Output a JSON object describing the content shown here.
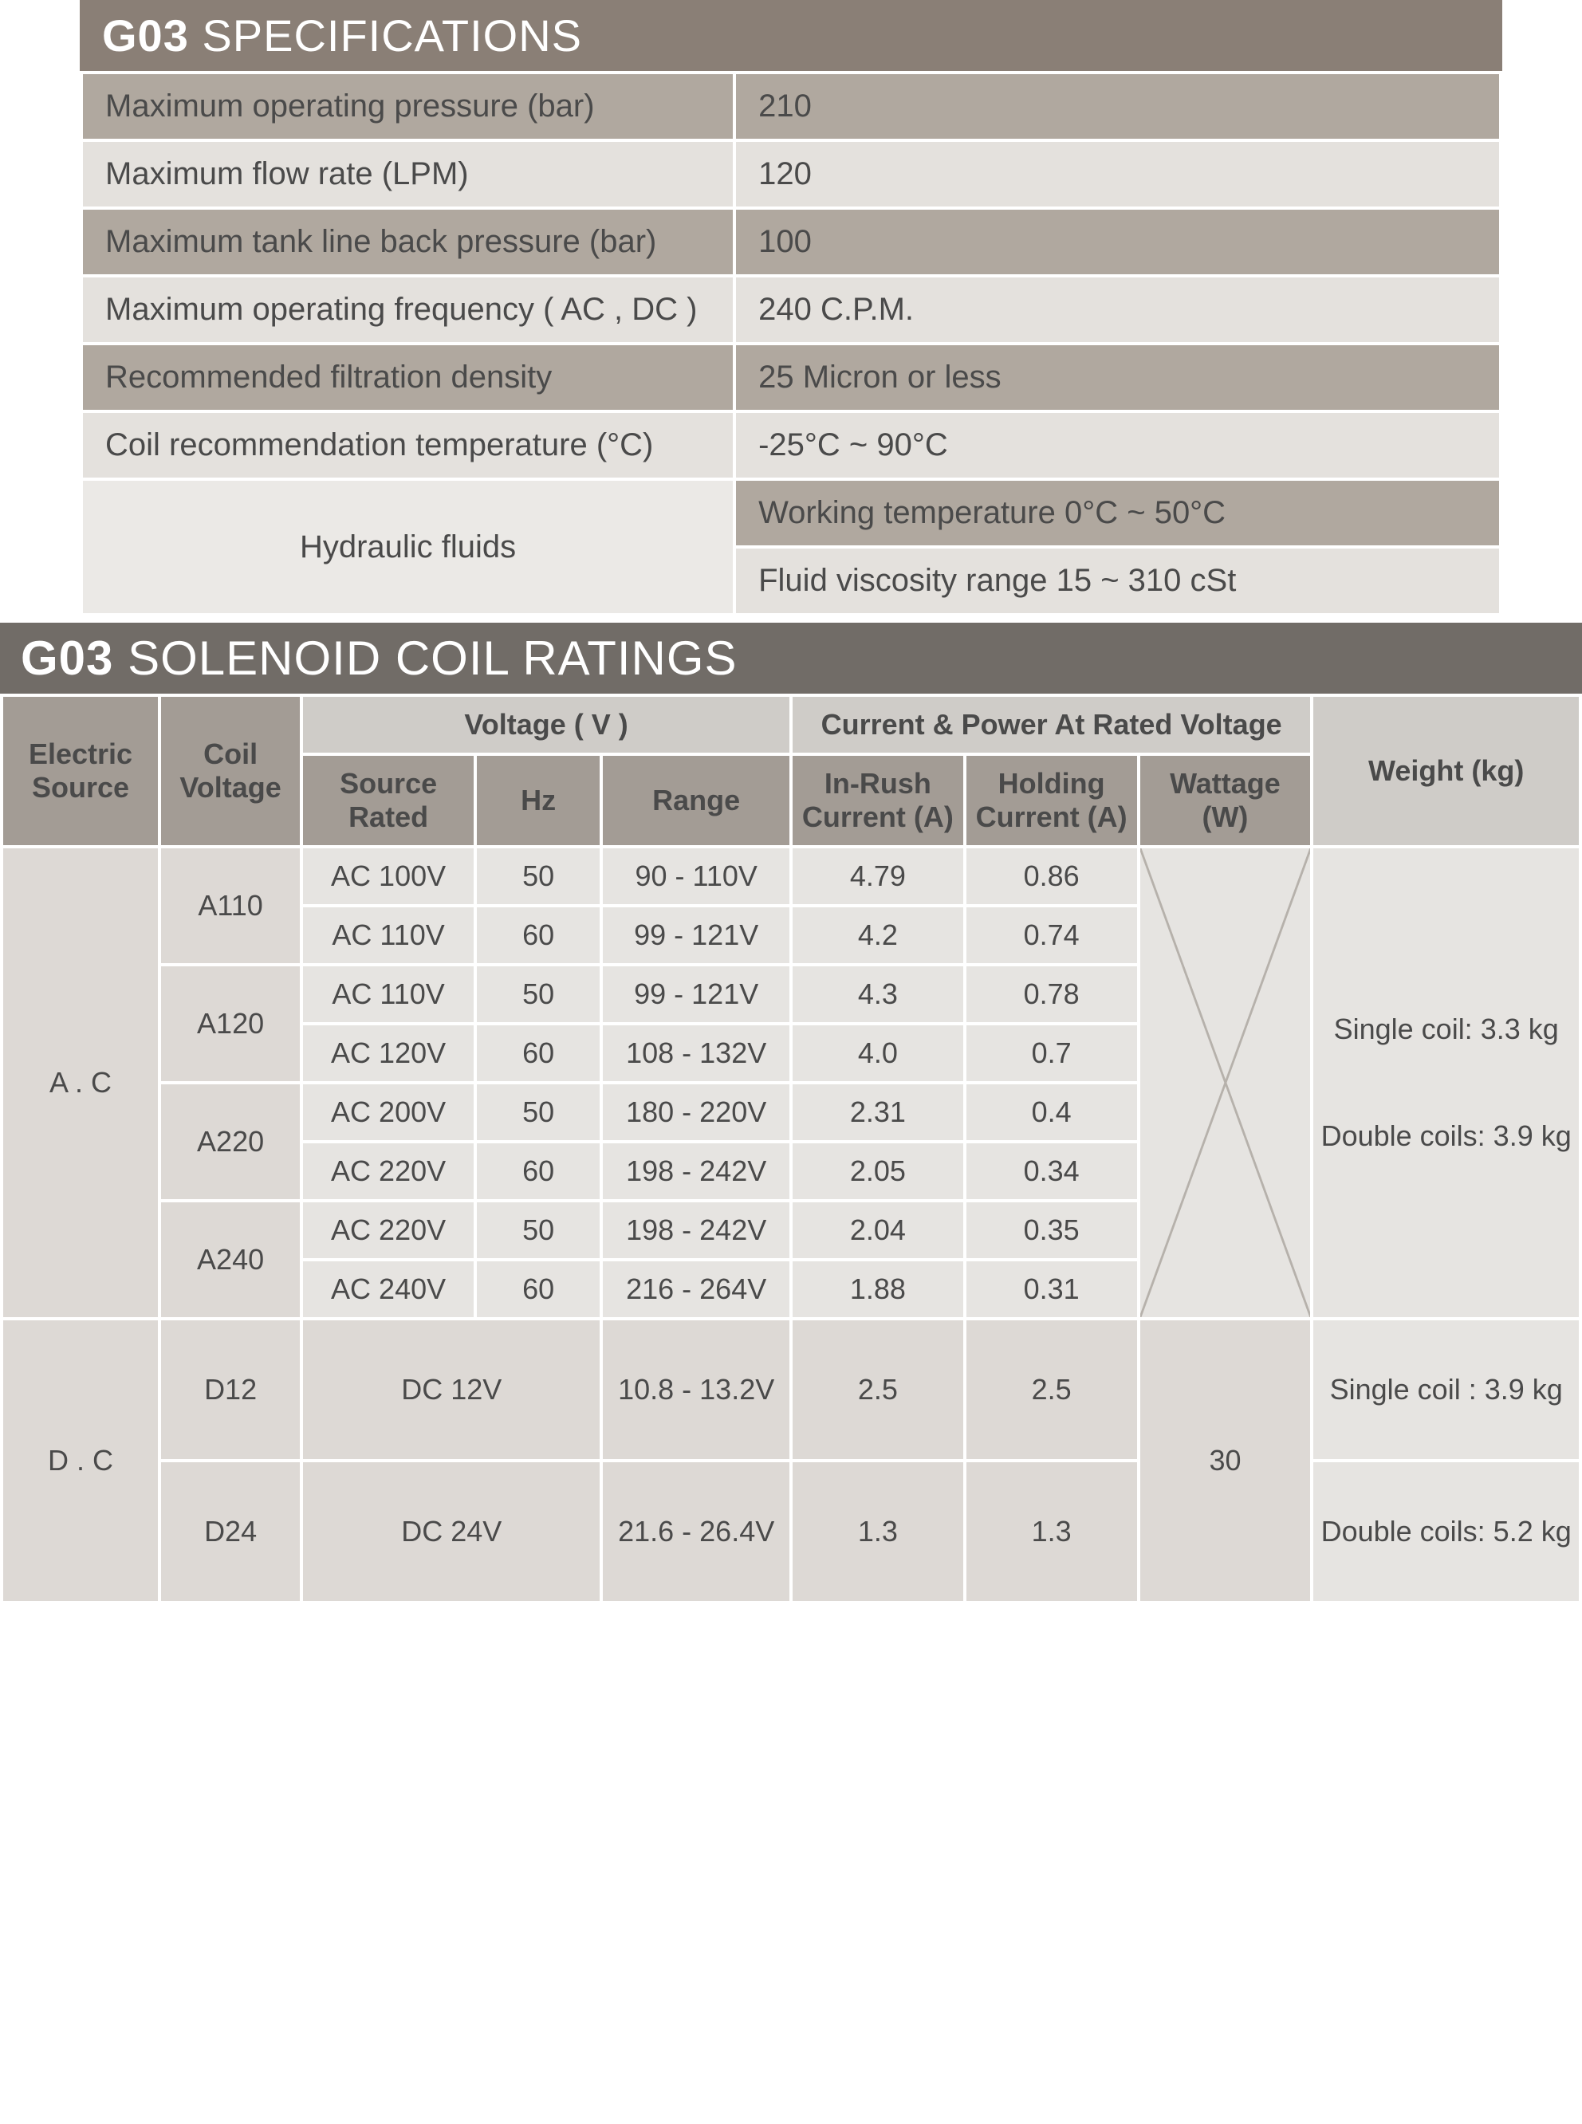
{
  "spec": {
    "title_bold": "G03",
    "title_rest": "SPECIFICATIONS",
    "rows": [
      {
        "label": "Maximum operating pressure (bar)",
        "value": "210"
      },
      {
        "label": "Maximum flow rate (LPM)",
        "value": "120"
      },
      {
        "label": "Maximum tank line back pressure  (bar)",
        "value": "100"
      },
      {
        "label": "Maximum operating frequency  ( AC , DC )",
        "value": "240 C.P.M."
      },
      {
        "label": "Recommended filtration density",
        "value": "25 Micron or less"
      },
      {
        "label": "Coil recommendation temperature (°C)",
        "value": "-25°C ~ 90°C"
      }
    ],
    "hydraulic_label": "Hydraulic fluids",
    "hydraulic_1": "Working temperature  0°C ~ 50°C",
    "hydraulic_2": "Fluid viscosity range 15 ~ 310 cSt",
    "colors": {
      "title_bg": "#8a7f76",
      "row_dark": "#b0a89f",
      "row_light": "#e4e1dd"
    }
  },
  "ratings": {
    "title_bold": "G03",
    "title_rest": "SOLENOID COIL RATINGS",
    "header": {
      "electric_source": "Electric Source",
      "coil_voltage": "Coil Voltage",
      "voltage_group": "Voltage ( V )",
      "current_group": "Current  & Power At Rated Voltage",
      "weight": "Weight (kg)",
      "source_rated": "Source Rated",
      "hz": "Hz",
      "range": "Range",
      "inrush": "In-Rush Current (A)",
      "holding": "Holding Current (A)",
      "wattage": "Wattage (W)"
    },
    "ac_label": "A . C",
    "dc_label": "D . C",
    "ac_groups": [
      {
        "coil": "A110",
        "rows": [
          {
            "src": "AC 100V",
            "hz": "50",
            "range": "90 - 110V",
            "inrush": "4.79",
            "holding": "0.86"
          },
          {
            "src": "AC 110V",
            "hz": "60",
            "range": "99 - 121V",
            "inrush": "4.2",
            "holding": "0.74"
          }
        ]
      },
      {
        "coil": "A120",
        "rows": [
          {
            "src": "AC 110V",
            "hz": "50",
            "range": "99 - 121V",
            "inrush": "4.3",
            "holding": "0.78"
          },
          {
            "src": "AC 120V",
            "hz": "60",
            "range": "108 - 132V",
            "inrush": "4.0",
            "holding": "0.7"
          }
        ]
      },
      {
        "coil": "A220",
        "rows": [
          {
            "src": "AC 200V",
            "hz": "50",
            "range": "180 - 220V",
            "inrush": "2.31",
            "holding": "0.4"
          },
          {
            "src": "AC 220V",
            "hz": "60",
            "range": "198 - 242V",
            "inrush": "2.05",
            "holding": "0.34"
          }
        ]
      },
      {
        "coil": "A240",
        "rows": [
          {
            "src": "AC 220V",
            "hz": "50",
            "range": "198 - 242V",
            "inrush": "2.04",
            "holding": "0.35"
          },
          {
            "src": "AC 240V",
            "hz": "60",
            "range": "216 - 264V",
            "inrush": "1.88",
            "holding": "0.31"
          }
        ]
      }
    ],
    "ac_weight_single": "Single coil: 3.3 kg",
    "ac_weight_double": "Double coils: 3.9 kg",
    "dc_rows": [
      {
        "coil": "D12",
        "src": "DC 12V",
        "range": "10.8 - 13.2V",
        "inrush": "2.5",
        "holding": "2.5"
      },
      {
        "coil": "D24",
        "src": "DC 24V",
        "range": "21.6 - 26.4V",
        "inrush": "1.3",
        "holding": "1.3"
      }
    ],
    "dc_wattage": "30",
    "dc_weight_single": "Single coil : 3.9 kg",
    "dc_weight_double": "Double coils: 5.2 kg",
    "colors": {
      "title_bg": "#716c67",
      "hdr_dark": "#a39c95",
      "hdr_light": "#cfccc8",
      "body_a": "#e6e4e1",
      "body_b": "#ddd9d5",
      "x_line": "#b6b1ab"
    }
  }
}
